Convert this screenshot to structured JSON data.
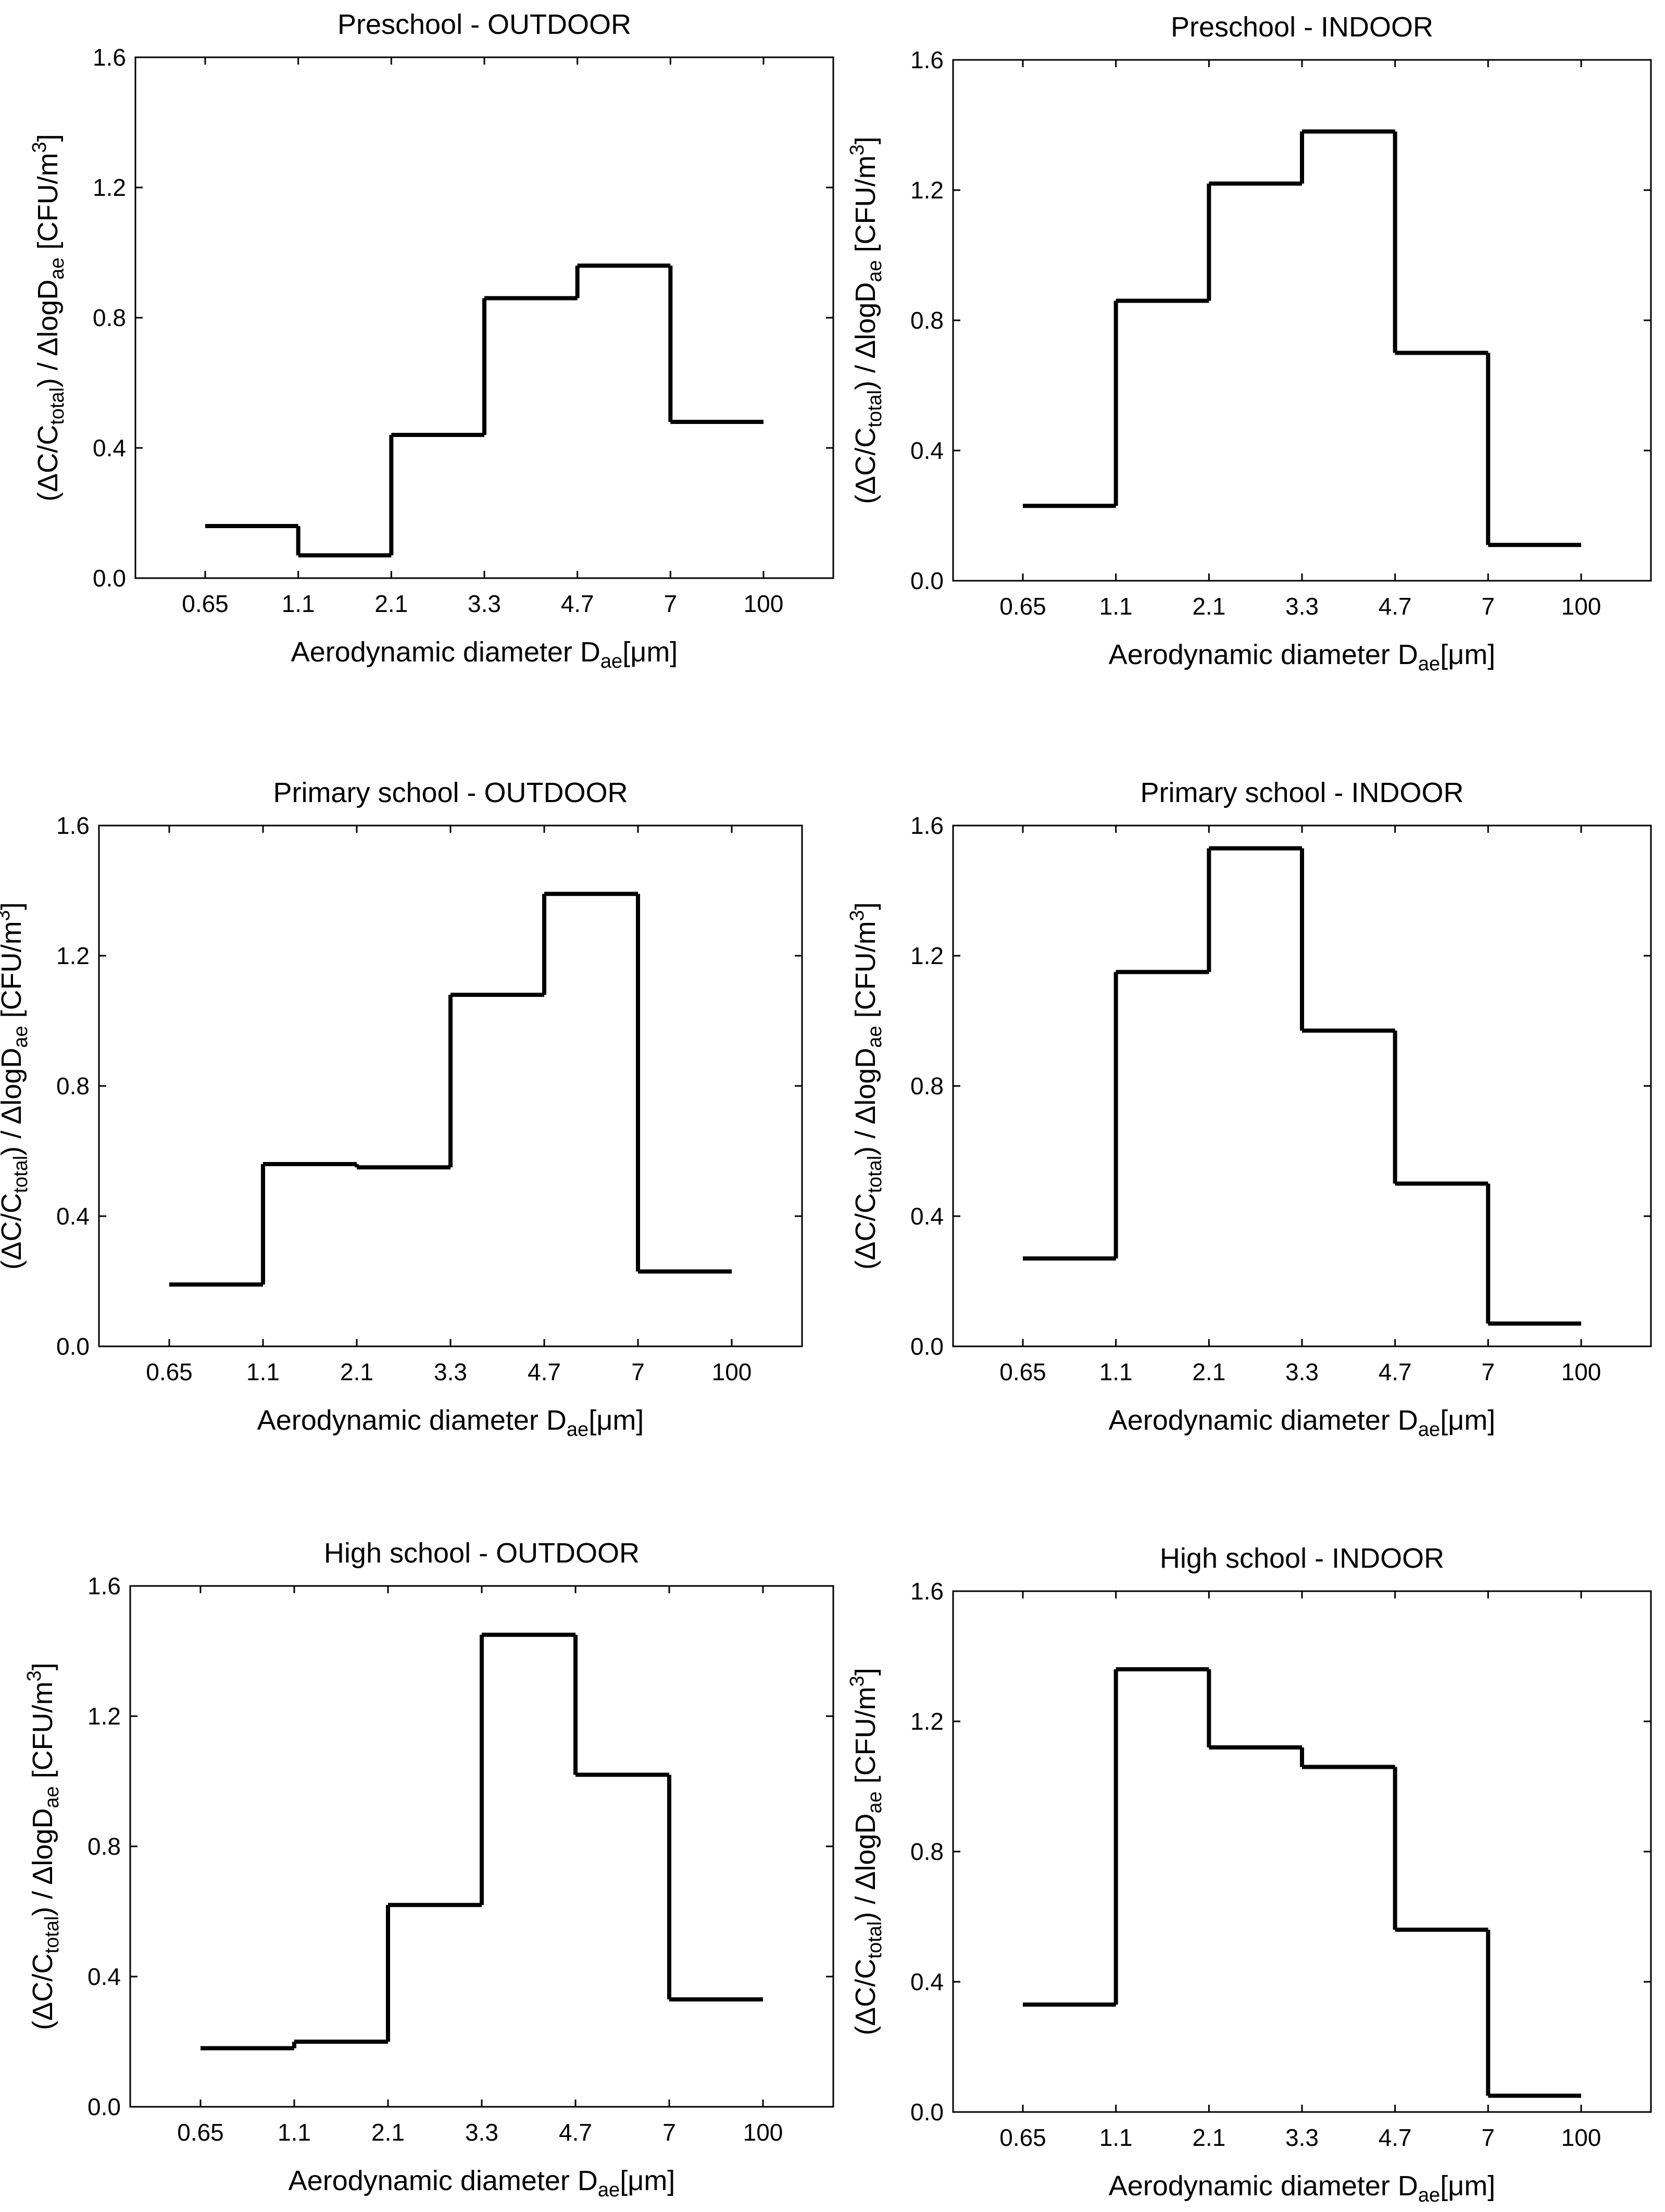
{
  "figure": {
    "panels": [
      {
        "title": "Preschool - OUTDOOR"
      },
      {
        "title": "Preschool - INDOOR"
      },
      {
        "title": "Primary school - OUTDOOR"
      },
      {
        "title": "Primary school - INDOOR"
      },
      {
        "title": "High school - OUTDOOR"
      },
      {
        "title": "High school - INDOOR"
      }
    ]
  },
  "chart_data": [
    {
      "type": "step",
      "title": "Preschool - OUTDOOR",
      "xlabel": "Aerodynamic diameter D",
      "xlabel_sub": "ae",
      "xlabel_unit": "[μm]",
      "ylabel_pre": "(ΔC/C",
      "ylabel_sub1": "total",
      "ylabel_mid": ") / ΔlogD",
      "ylabel_sub2": "ae",
      "ylabel_unit": " [CFU/m",
      "ylabel_sup": "3",
      "ylabel_end": "]",
      "x_ticks": [
        "0.65",
        "1.1",
        "2.1",
        "3.3",
        "4.7",
        "7",
        "100"
      ],
      "y_ticks": [
        "0.0",
        "0.4",
        "0.8",
        "1.2",
        "1.6"
      ],
      "ylim": [
        0,
        1.6
      ],
      "bins": [
        "0.65-1.1",
        "1.1-2.1",
        "2.1-3.3",
        "3.3-4.7",
        "4.7-7",
        "7-100"
      ],
      "values": [
        0.16,
        0.07,
        0.44,
        0.86,
        0.96,
        0.48
      ]
    },
    {
      "type": "step",
      "title": "Preschool - INDOOR",
      "xlabel": "Aerodynamic diameter D",
      "xlabel_sub": "ae",
      "xlabel_unit": "[μm]",
      "ylabel_pre": "(ΔC/C",
      "ylabel_sub1": "total",
      "ylabel_mid": ") / ΔlogD",
      "ylabel_sub2": "ae",
      "ylabel_unit": " [CFU/m",
      "ylabel_sup": "3",
      "ylabel_end": "]",
      "x_ticks": [
        "0.65",
        "1.1",
        "2.1",
        "3.3",
        "4.7",
        "7",
        "100"
      ],
      "y_ticks": [
        "0.0",
        "0.4",
        "0.8",
        "1.2",
        "1.6"
      ],
      "ylim": [
        0,
        1.6
      ],
      "bins": [
        "0.65-1.1",
        "1.1-2.1",
        "2.1-3.3",
        "3.3-4.7",
        "4.7-7",
        "7-100"
      ],
      "values": [
        0.23,
        0.86,
        1.22,
        1.38,
        0.7,
        0.11
      ]
    },
    {
      "type": "step",
      "title": "Primary school - OUTDOOR",
      "xlabel": "Aerodynamic diameter D",
      "xlabel_sub": "ae",
      "xlabel_unit": "[μm]",
      "ylabel_pre": "(ΔC/C",
      "ylabel_sub1": "total",
      "ylabel_mid": ") / ΔlogD",
      "ylabel_sub2": "ae",
      "ylabel_unit": " [CFU/m",
      "ylabel_sup": "3",
      "ylabel_end": "]",
      "x_ticks": [
        "0.65",
        "1.1",
        "2.1",
        "3.3",
        "4.7",
        "7",
        "100"
      ],
      "y_ticks": [
        "0.0",
        "0.4",
        "0.8",
        "1.2",
        "1.6"
      ],
      "ylim": [
        0,
        1.6
      ],
      "bins": [
        "0.65-1.1",
        "1.1-2.1",
        "2.1-3.3",
        "3.3-4.7",
        "4.7-7",
        "7-100"
      ],
      "values": [
        0.19,
        0.56,
        0.55,
        1.08,
        1.39,
        0.23
      ]
    },
    {
      "type": "step",
      "title": "Primary school - INDOOR",
      "xlabel": "Aerodynamic diameter D",
      "xlabel_sub": "ae",
      "xlabel_unit": "[μm]",
      "ylabel_pre": "(ΔC/C",
      "ylabel_sub1": "total",
      "ylabel_mid": ") / ΔlogD",
      "ylabel_sub2": "ae",
      "ylabel_unit": " [CFU/m",
      "ylabel_sup": "3",
      "ylabel_end": "]",
      "x_ticks": [
        "0.65",
        "1.1",
        "2.1",
        "3.3",
        "4.7",
        "7",
        "100"
      ],
      "y_ticks": [
        "0.0",
        "0.4",
        "0.8",
        "1.2",
        "1.6"
      ],
      "ylim": [
        0,
        1.6
      ],
      "bins": [
        "0.65-1.1",
        "1.1-2.1",
        "2.1-3.3",
        "3.3-4.7",
        "4.7-7",
        "7-100"
      ],
      "values": [
        0.27,
        1.15,
        1.53,
        0.97,
        0.5,
        0.07
      ]
    },
    {
      "type": "step",
      "title": "High school - OUTDOOR",
      "xlabel": "Aerodynamic diameter D",
      "xlabel_sub": "ae",
      "xlabel_unit": "[μm]",
      "ylabel_pre": "(ΔC/C",
      "ylabel_sub1": "total",
      "ylabel_mid": ") / ΔlogD",
      "ylabel_sub2": "ae",
      "ylabel_unit": " [CFU/m",
      "ylabel_sup": "3",
      "ylabel_end": "]",
      "x_ticks": [
        "0.65",
        "1.1",
        "2.1",
        "3.3",
        "4.7",
        "7",
        "100"
      ],
      "y_ticks": [
        "0.0",
        "0.4",
        "0.8",
        "1.2",
        "1.6"
      ],
      "ylim": [
        0,
        1.6
      ],
      "bins": [
        "0.65-1.1",
        "1.1-2.1",
        "2.1-3.3",
        "3.3-4.7",
        "4.7-7",
        "7-100"
      ],
      "values": [
        0.18,
        0.2,
        0.62,
        1.45,
        1.02,
        0.33
      ]
    },
    {
      "type": "step",
      "title": "High school - INDOOR",
      "xlabel": "Aerodynamic diameter D",
      "xlabel_sub": "ae",
      "xlabel_unit": "[μm]",
      "ylabel_pre": "(ΔC/C",
      "ylabel_sub1": "total",
      "ylabel_mid": ") / ΔlogD",
      "ylabel_sub2": "ae",
      "ylabel_unit": " [CFU/m",
      "ylabel_sup": "3",
      "ylabel_end": "]",
      "x_ticks": [
        "0.65",
        "1.1",
        "2.1",
        "3.3",
        "4.7",
        "7",
        "100"
      ],
      "y_ticks": [
        "0.0",
        "0.4",
        "0.8",
        "1.2",
        "1.6"
      ],
      "ylim": [
        0,
        1.6
      ],
      "bins": [
        "0.65-1.1",
        "1.1-2.1",
        "2.1-3.3",
        "3.3-4.7",
        "4.7-7",
        "7-100"
      ],
      "values": [
        0.33,
        1.36,
        1.12,
        1.06,
        0.56,
        0.05
      ]
    }
  ]
}
